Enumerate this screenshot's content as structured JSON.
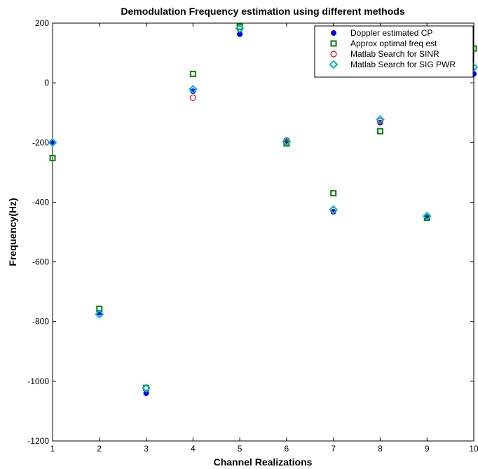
{
  "chart_data": {
    "type": "scatter",
    "title": "Demodulation Frequency estimation using different methods",
    "xlabel": "Channel Realizations",
    "ylabel": "Frequency(Hz)",
    "xlim": [
      1,
      10
    ],
    "ylim": [
      -1200,
      200
    ],
    "xticks": [
      1,
      2,
      3,
      4,
      5,
      6,
      7,
      8,
      9,
      10
    ],
    "yticks": [
      -1200,
      -1000,
      -800,
      -600,
      -400,
      -200,
      0,
      200
    ],
    "grid": false,
    "legend_position": "top-right",
    "x": [
      1,
      2,
      3,
      4,
      5,
      6,
      7,
      8,
      9,
      10
    ],
    "series": [
      {
        "name": "Doppler estimated CP",
        "marker": "filled-circle",
        "color": "#0000ff",
        "values": [
          -200,
          -770,
          -1040,
          -28,
          163,
          -195,
          -432,
          -133,
          -450,
          30
        ]
      },
      {
        "name": "Approx optimal freq est",
        "marker": "square",
        "color": "#007f00",
        "values": [
          -252,
          -757,
          -1022,
          30,
          188,
          -203,
          -370,
          -162,
          -452,
          115
        ]
      },
      {
        "name": "Matlab Search for SINR",
        "marker": "open-circle",
        "color": "#ff0000",
        "values": [
          -200,
          -775,
          -1025,
          -50,
          180,
          -193,
          -427,
          -128,
          -447,
          52
        ]
      },
      {
        "name": "Matlab Search for SIG PWR",
        "marker": "diamond",
        "color": "#00bfbf",
        "values": [
          -200,
          -775,
          -1023,
          -22,
          182,
          -197,
          -425,
          -123,
          -447,
          52
        ]
      }
    ]
  }
}
